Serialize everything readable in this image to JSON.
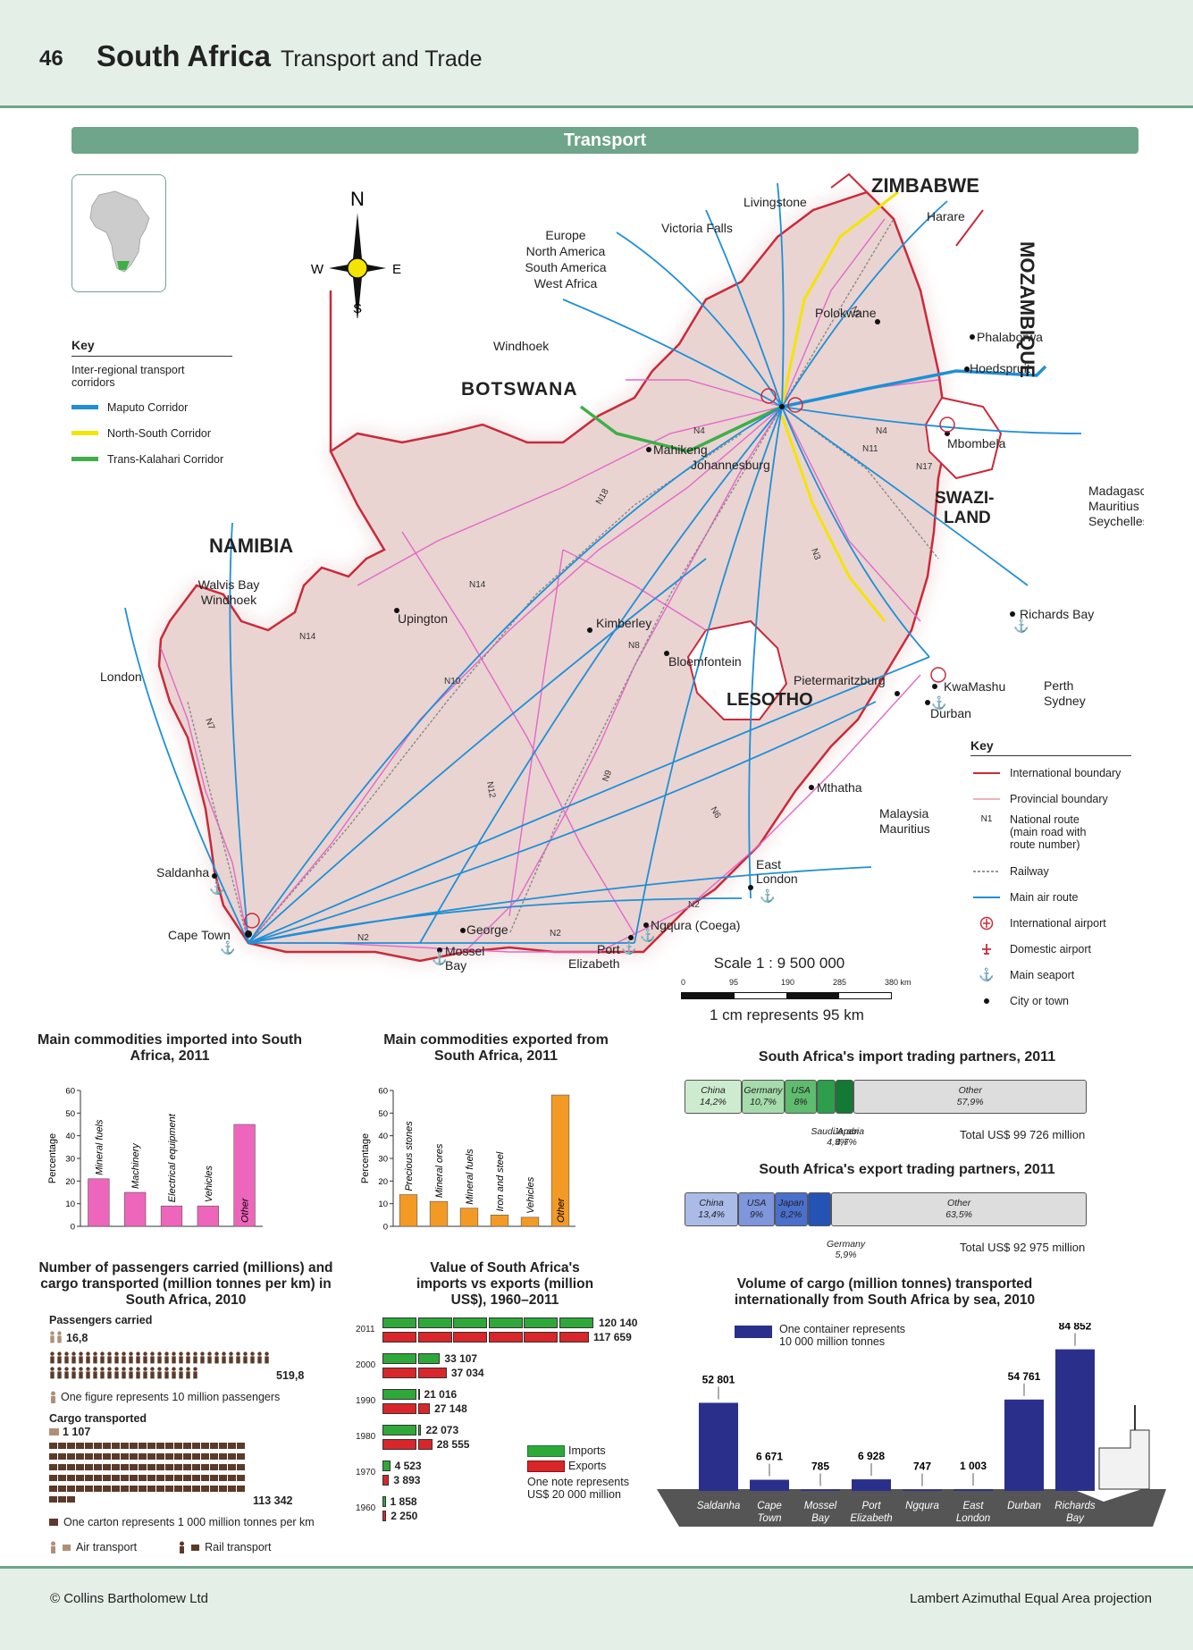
{
  "header": {
    "page_number": "46",
    "title": "South Africa",
    "subtitle": "Transport and Trade"
  },
  "section_title": "Transport",
  "compass": {
    "n": "N",
    "s": "S",
    "e": "E",
    "w": "W"
  },
  "corridor_key": {
    "title": "Key",
    "subtitle": "Inter-regional transport corridors",
    "items": [
      {
        "label": "Maputo Corridor",
        "color": "#1f8fd6"
      },
      {
        "label": "North-South Corridor",
        "color": "#f2e600"
      },
      {
        "label": "Trans-Kalahari Corridor",
        "color": "#3fae49"
      }
    ]
  },
  "map": {
    "countries": [
      "BOTSWANA",
      "NAMIBIA",
      "ZIMBABWE",
      "MOZAMBIQUE",
      "SWAZI-",
      "LAND",
      "LESOTHO"
    ],
    "destinations": {
      "europe": [
        "Europe",
        "North America",
        "South America",
        "West Africa"
      ],
      "windhoek": "Windhoek",
      "victoria_falls": "Victoria Falls",
      "livingstone": "Livingstone",
      "harare": "Harare",
      "walvis": [
        "Walvis Bay",
        "Windhoek"
      ],
      "london": "London",
      "madagascar": [
        "Madagascar",
        "Mauritius",
        "Seychelles"
      ],
      "perth": [
        "Perth",
        "Sydney"
      ],
      "malaysia": [
        "Malaysia",
        "Mauritius"
      ]
    },
    "cities": {
      "polokwane": "Polokwane",
      "phalaborwa": "Phalaborwa",
      "hoedspruit": "Hoedspruit",
      "mahikeng": "Mahikeng",
      "johannesburg": "Johannesburg",
      "mbombela": "Mbombela",
      "upington": "Upington",
      "kimberley": "Kimberley",
      "bloemfontein": "Bloemfontein",
      "richards_bay": "Richards Bay",
      "pietermaritzburg": "Pietermaritzburg",
      "kwamashu": "KwaMashu",
      "durban": "Durban",
      "mthatha": "Mthatha",
      "east_london": [
        "East",
        "London"
      ],
      "saldanha": "Saldanha",
      "cape_town": "Cape Town",
      "george": "George",
      "mossel_bay": [
        "Mossel",
        "Bay"
      ],
      "port_elizabeth": [
        "Port",
        "Elizabeth"
      ],
      "ngqura": "Ngqura (Coega)"
    },
    "routes": [
      "N1",
      "N2",
      "N3",
      "N4",
      "N6",
      "N7",
      "N8",
      "N9",
      "N10",
      "N11",
      "N12",
      "N14",
      "N17",
      "N18"
    ],
    "scale": {
      "text": "Scale 1 : 9 500 000",
      "ticks": [
        "0",
        "95",
        "190",
        "285",
        "380 km"
      ],
      "note": "1 cm represents 95 km"
    }
  },
  "map_key": {
    "title": "Key",
    "items": [
      {
        "symbol": "intl-boundary",
        "label": "International boundary"
      },
      {
        "symbol": "prov-boundary",
        "label": "Provincial boundary"
      },
      {
        "symbol": "national-route",
        "code": "N1",
        "label": [
          "National route",
          "(main road with",
          "route number)"
        ]
      },
      {
        "symbol": "railway",
        "label": "Railway"
      },
      {
        "symbol": "air-route",
        "label": "Main air route"
      },
      {
        "symbol": "intl-airport",
        "label": "International airport"
      },
      {
        "symbol": "dom-airport",
        "label": "Domestic airport"
      },
      {
        "symbol": "seaport",
        "label": "Main seaport"
      },
      {
        "symbol": "city",
        "label": "City or town"
      }
    ]
  },
  "chart_data": [
    {
      "type": "bar",
      "title": "Main commodities imported into South Africa, 2011",
      "ylabel": "Percentage",
      "ylim": [
        0,
        60
      ],
      "yticks": [
        "0",
        "10",
        "20",
        "30",
        "40",
        "50",
        "60"
      ],
      "categories": [
        "Mineral fuels",
        "Machinery",
        "Electrical equipment",
        "Vehicles",
        "Other"
      ],
      "values": [
        21,
        15,
        9,
        9,
        45
      ],
      "color": "#ee66bb"
    },
    {
      "type": "bar",
      "title": "Main commodities exported from South Africa, 2011",
      "ylabel": "Percentage",
      "ylim": [
        0,
        60
      ],
      "yticks": [
        "0",
        "10",
        "20",
        "30",
        "40",
        "50",
        "60"
      ],
      "categories": [
        "Precious stones",
        "Mineral ores",
        "Mineral fuels",
        "Iron and steel",
        "Vehicles",
        "Other"
      ],
      "values": [
        14,
        11,
        8,
        5,
        4,
        58
      ],
      "color": "#f39a25"
    },
    {
      "type": "bar",
      "title": "South Africa's import trading partners, 2011",
      "total": "Total US$ 99 726 million",
      "segments": [
        {
          "name": "China",
          "label": "14,2%",
          "value": 14.2,
          "color": "#cdeccf"
        },
        {
          "name": "Germany",
          "label": "10,7%",
          "value": 10.7,
          "color": "#a6dcab"
        },
        {
          "name": "USA",
          "label": "8%",
          "value": 8,
          "color": "#5fbb6e"
        },
        {
          "name": "Japan",
          "label": "4,7%",
          "value": 4.7,
          "color": "#2e9e4c"
        },
        {
          "name": "Saudi Arabia",
          "label": "4,5%",
          "value": 4.5,
          "color": "#137a36"
        },
        {
          "name": "Other",
          "label": "57,9%",
          "value": 57.9,
          "color": "#dddddd"
        }
      ]
    },
    {
      "type": "bar",
      "title": "South Africa's export trading partners, 2011",
      "total": "Total US$ 92 975 million",
      "segments": [
        {
          "name": "China",
          "label": "13,4%",
          "value": 13.4,
          "color": "#aabbe8"
        },
        {
          "name": "USA",
          "label": "9%",
          "value": 9,
          "color": "#7d96dc"
        },
        {
          "name": "Japan",
          "label": "8,2%",
          "value": 8.2,
          "color": "#4a6fcc"
        },
        {
          "name": "Germany",
          "label": "5,9%",
          "value": 5.9,
          "color": "#2552b5"
        },
        {
          "name": "Other",
          "label": "63,5%",
          "value": 63.5,
          "color": "#dddddd"
        }
      ]
    },
    {
      "type": "bar",
      "title": "Value of South Africa's imports vs exports (million US$), 1960–2011",
      "categories": [
        "2011",
        "2000",
        "1990",
        "1980",
        "1970",
        "1960"
      ],
      "series": [
        {
          "name": "Imports",
          "values": [
            120140,
            33107,
            21016,
            22073,
            4523,
            1858
          ],
          "labels": [
            "120 140",
            "33 107",
            "21 016",
            "22 073",
            "4 523",
            "1 858"
          ],
          "color": "#2fa83a"
        },
        {
          "name": "Exports",
          "values": [
            117659,
            37034,
            27148,
            28555,
            3893,
            2250
          ],
          "labels": [
            "117 659",
            "37 034",
            "27 148",
            "28 555",
            "3 893",
            "2 250"
          ],
          "color": "#d9262b"
        }
      ],
      "note": [
        "One note represents",
        "US$ 20 000 million"
      ]
    },
    {
      "type": "bar",
      "title": "Volume of cargo (million tonnes) transported internationally from South Africa by sea, 2010",
      "note": [
        "One container represents",
        "10 000 million tonnes"
      ],
      "categories": [
        [
          "Saldanha"
        ],
        [
          "Cape",
          "Town"
        ],
        [
          "Mossel",
          "Bay"
        ],
        [
          "Port",
          "Elizabeth"
        ],
        [
          "Ngqura"
        ],
        [
          "East",
          "London"
        ],
        [
          "Durban"
        ],
        [
          "Richards",
          "Bay"
        ]
      ],
      "values": [
        52801,
        6671,
        785,
        6928,
        747,
        1003,
        54761,
        84852
      ],
      "labels": [
        "52 801",
        "6 671",
        "785",
        "6 928",
        "747",
        "1 003",
        "54 761",
        "84 852"
      ],
      "color": "#2b2f8c"
    }
  ],
  "passengers": {
    "title": "Number of passengers carried (millions) and cargo transported (million tonnes per km) in South Africa, 2010",
    "passengers_label": "Passengers carried",
    "air_passengers": "16,8",
    "rail_passengers": "519,8",
    "figure_note": "One figure represents 10 million passengers",
    "cargo_label": "Cargo transported",
    "air_cargo": "1 107",
    "rail_cargo": "113 342",
    "carton_note": "One carton represents 1 000 million tonnes per km",
    "air_legend": "Air transport",
    "rail_legend": "Rail transport",
    "air_color": "#b08f78",
    "rail_color": "#5b3a2a"
  },
  "footer": {
    "copyright": "© Collins Bartholomew Ltd",
    "projection": "Lambert Azimuthal Equal Area projection"
  }
}
